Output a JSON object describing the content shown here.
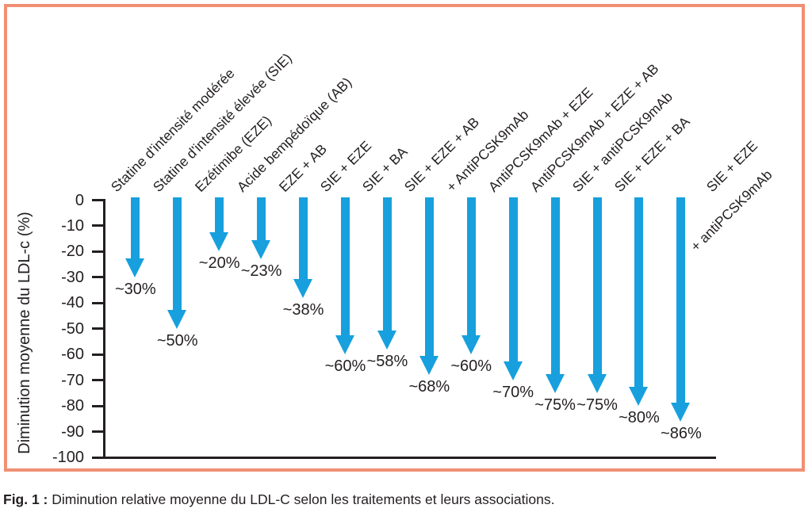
{
  "figure": {
    "caption_prefix": "Fig. 1 :",
    "caption_text": "Diminution relative moyenne du LDL-C selon les traitements et leurs associations."
  },
  "chart_data": {
    "type": "bar",
    "subtype": "downward-arrow-reduction-chart",
    "title": "",
    "xlabel": "",
    "ylabel": "Diminution moyenne du LDL-c (%)",
    "ylim": [
      -100,
      0
    ],
    "yticks": [
      0,
      -10,
      -20,
      -30,
      -40,
      -50,
      -60,
      -70,
      -80,
      -90,
      -100
    ],
    "grid": false,
    "legend": false,
    "categories": [
      "Statine d'intensité modérée",
      "Statine d'intensité élevée (SIE)",
      "Ezétimibe (EZE)",
      "Acide bempédoïque (AB)",
      "EZE + AB",
      "SIE + EZE",
      "SIE + BA",
      "SIE + EZE + AB",
      "+ AntiPCSK9mAb",
      "AntiPCSK9mAb + EZE",
      "AntiPCSK9mAb + EZE + AB",
      "SIE + antiPCSK9mAb",
      "SIE + EZE + BA",
      "SIE + EZE\n+ antiPCSK9mAb"
    ],
    "values": [
      -30,
      -50,
      -20,
      -23,
      -38,
      -60,
      -58,
      -68,
      -60,
      -70,
      -75,
      -75,
      -80,
      -86
    ],
    "value_labels": [
      "~30%",
      "~50%",
      "~20%",
      "~23%",
      "~38%",
      "~60%",
      "~58%",
      "~68%",
      "~60%",
      "~70%",
      "~75%",
      "~75%",
      "~80%",
      "~86%"
    ],
    "colors": {
      "arrow": "#17A0DD",
      "axis": "#231F20",
      "text": "#231F20",
      "frame_border": "#F18F73",
      "background": "#FFFFFF"
    }
  }
}
